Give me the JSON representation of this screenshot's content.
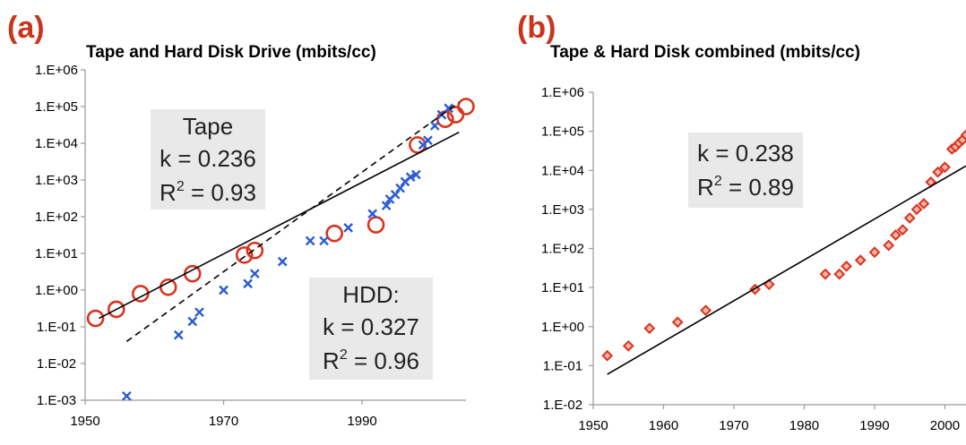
{
  "colors": {
    "tape": "#d9341f",
    "hdd": "#2a5bd7",
    "combined": "#d9341f",
    "panel_letter": "#c8341f"
  },
  "chart_data": [
    {
      "type": "scatter",
      "panel": "(a)",
      "title": "Tape and Hard Disk Drive (mbits/cc)",
      "xlabel": "",
      "ylabel": "",
      "xlim": [
        1950,
        2005
      ],
      "ylim": [
        0.001,
        1000000
      ],
      "yscale": "log",
      "x_ticks": [
        1950,
        1970,
        1990
      ],
      "x_tick_labels": [
        "1950",
        "1970",
        "1990"
      ],
      "y_ticks": [
        0.001,
        0.01,
        0.1,
        1,
        10,
        100,
        1000,
        10000,
        100000,
        1000000
      ],
      "y_tick_labels": [
        "1.E-03",
        "1.E-02",
        "1.E-01",
        "1.E+00",
        "1.E+01",
        "1.E+02",
        "1.E+03",
        "1.E+04",
        "1.E+05",
        "1.E+06"
      ],
      "grid": false,
      "series": [
        {
          "marker": "circle",
          "color": "#d9341f",
          "x": [
            1951.5,
            1954.5,
            1958,
            1962,
            1965.5,
            1973,
            1974.5,
            1986,
            1992,
            1998,
            2002,
            2003.5,
            2005
          ],
          "y": [
            0.17,
            0.3,
            0.8,
            1.2,
            2.8,
            9,
            12,
            35,
            60,
            9000,
            45000,
            60000,
            100000
          ]
        },
        {
          "marker": "x",
          "color": "#2a5bd7",
          "x": [
            1956,
            1963.5,
            1965.5,
            1966.5,
            1970,
            1973.5,
            1974.5,
            1978.5,
            1982.5,
            1984.5,
            1988,
            1991.5,
            1993.5,
            1994,
            1994.8,
            1995.5,
            1996.2,
            1997,
            1997.8,
            1998.8,
            1999.5,
            2000.5,
            2001.5,
            2002.5
          ],
          "y": [
            0.0013,
            0.06,
            0.14,
            0.25,
            1.0,
            1.5,
            2.8,
            6,
            22,
            22,
            50,
            120,
            200,
            300,
            400,
            600,
            900,
            1200,
            1400,
            9000,
            12000,
            30000,
            60000,
            90000
          ]
        },
        {
          "line": "solid",
          "color": "#000000",
          "x": [
            1952,
            2004
          ],
          "y": [
            0.17,
            20000
          ]
        },
        {
          "line": "dashed",
          "color": "#000000",
          "x": [
            1956,
            2004
          ],
          "y": [
            0.04,
            130000
          ]
        }
      ],
      "annotations": [
        {
          "lines": [
            "Tape:",
            "k = 0.236",
            "R2 = 0.93"
          ],
          "label": "Tape",
          "k": "k = 0.236",
          "r_base": "R",
          "r_sup": "2",
          "r_rest": " = 0.93"
        },
        {
          "lines": [
            "HDD:",
            "k = 0.327",
            "R2 = 0.96"
          ],
          "label": "HDD:",
          "k": "k = 0.327",
          "r_base": "R",
          "r_sup": "2",
          "r_rest": " = 0.96"
        }
      ]
    },
    {
      "type": "scatter",
      "panel": "(b)",
      "title": "Tape & Hard Disk combined (mbits/cc)",
      "xlabel": "",
      "ylabel": "",
      "xlim": [
        1950,
        2003
      ],
      "ylim": [
        0.01,
        1000000
      ],
      "yscale": "log",
      "x_ticks": [
        1950,
        1960,
        1970,
        1980,
        1990,
        2000
      ],
      "x_tick_labels": [
        "1950",
        "1960",
        "1970",
        "1980",
        "1990",
        "2000"
      ],
      "y_ticks": [
        0.01,
        0.1,
        1,
        10,
        100,
        1000,
        10000,
        100000,
        1000000
      ],
      "y_tick_labels": [
        "1.E-02",
        "1.E-01",
        "1.E+00",
        "1.E+01",
        "1.E+02",
        "1.E+03",
        "1.E+04",
        "1.E+05",
        "1.E+06"
      ],
      "grid": false,
      "series": [
        {
          "marker": "diamond",
          "color": "#d9341f",
          "x": [
            1952,
            1955,
            1958,
            1962,
            1966,
            1973,
            1975,
            1983,
            1985,
            1986,
            1988,
            1990,
            1992,
            1993,
            1994,
            1995,
            1996,
            1997,
            1998,
            1999,
            2000,
            2001,
            2001.5,
            2002,
            2002.5,
            2003
          ],
          "y": [
            0.18,
            0.32,
            0.9,
            1.3,
            2.6,
            9,
            12,
            22,
            22,
            35,
            50,
            80,
            120,
            220,
            300,
            600,
            1000,
            1400,
            5000,
            9000,
            12000,
            35000,
            40000,
            50000,
            60000,
            80000
          ]
        },
        {
          "line": "solid",
          "color": "#000000",
          "x": [
            1952,
            2003
          ],
          "y": [
            0.06,
            13000
          ]
        }
      ],
      "annotations": [
        {
          "lines": [
            "k = 0.238",
            "R2 = 0.89"
          ],
          "k": "k = 0.238",
          "r_base": "R",
          "r_sup": "2",
          "r_rest": " = 0.89"
        }
      ]
    }
  ]
}
